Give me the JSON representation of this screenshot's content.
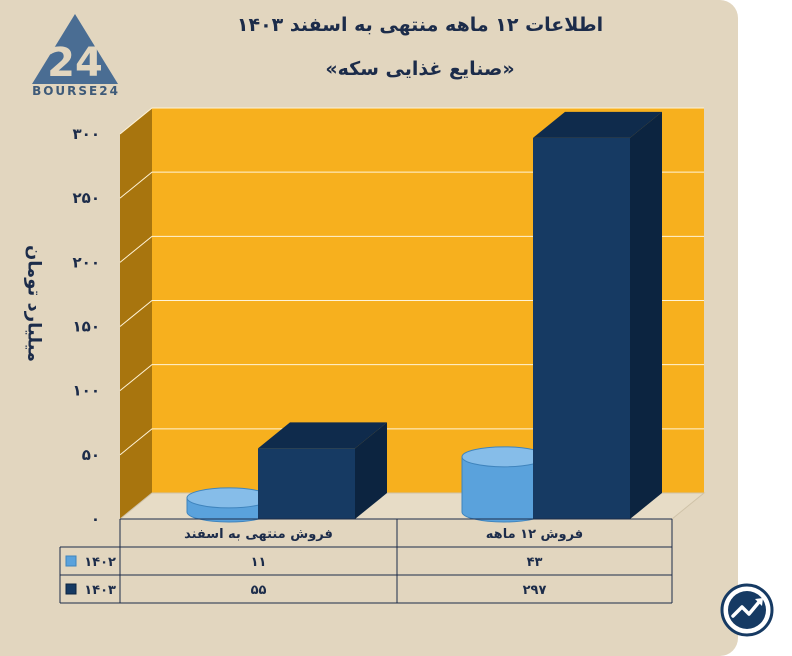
{
  "logo": {
    "brand": "BOURSE24"
  },
  "header": {
    "title": "اطلاعات ۱۲ ماهه منتهی به اسفند ۱۴۰۳",
    "subtitle": "«صنایع غذایی سکه»"
  },
  "colors": {
    "background": "#e2d6bf",
    "plot_back": "#f7b01e",
    "plot_side": "#a8750e",
    "series_1402": "#5aa2dc",
    "series_1403": "#163a63",
    "text": "#1c2c4a"
  },
  "chart_data": {
    "type": "bar",
    "ylabel": "میلیارد تومان",
    "ylim": [
      0,
      300
    ],
    "yticks": [
      0,
      50,
      100,
      150,
      200,
      250,
      300
    ],
    "ytick_labels": [
      "۰",
      "۵۰",
      "۱۰۰",
      "۱۵۰",
      "۲۰۰",
      "۲۵۰",
      "۳۰۰"
    ],
    "categories": [
      "فروش منتهی به  اسفند",
      "فروش ۱۲ ماهه"
    ],
    "series": [
      {
        "name": "۱۴۰۲",
        "values": [
          11,
          43
        ],
        "labels": [
          "۱۱",
          "۴۳"
        ],
        "shape": "cylinder",
        "color": "#5aa2dc"
      },
      {
        "name": "۱۴۰۳",
        "values": [
          55,
          297
        ],
        "labels": [
          "۵۵",
          "۲۹۷"
        ],
        "shape": "box",
        "color": "#163a63"
      }
    ],
    "grid": true,
    "legend": "data-table"
  }
}
